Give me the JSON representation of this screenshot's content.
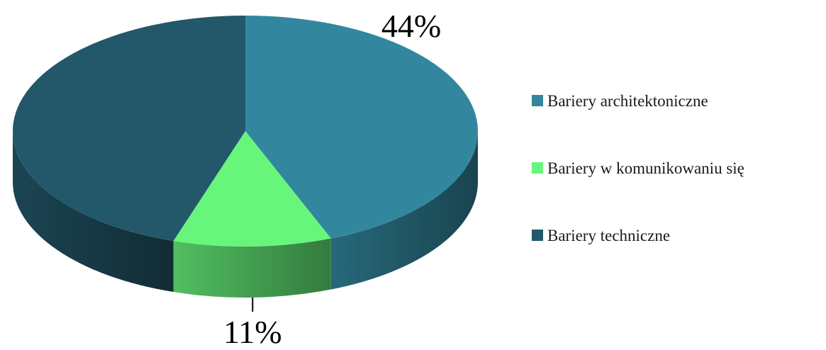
{
  "chart_data": {
    "type": "pie",
    "style": "3d",
    "title": "",
    "start_angle_deg": 90,
    "direction": "clockwise",
    "slices": [
      {
        "label": "Bariery architektoniczne",
        "value": 44,
        "display": "44%",
        "color": "#32879e"
      },
      {
        "label": "Bariery w komunikowaniu się",
        "value": 11,
        "display": "11%",
        "color": "#68f57c"
      },
      {
        "label": "Bariery techniczne",
        "value": 45,
        "display": "45%",
        "color": "#22586a"
      }
    ],
    "legend": {
      "placement": "right"
    }
  }
}
